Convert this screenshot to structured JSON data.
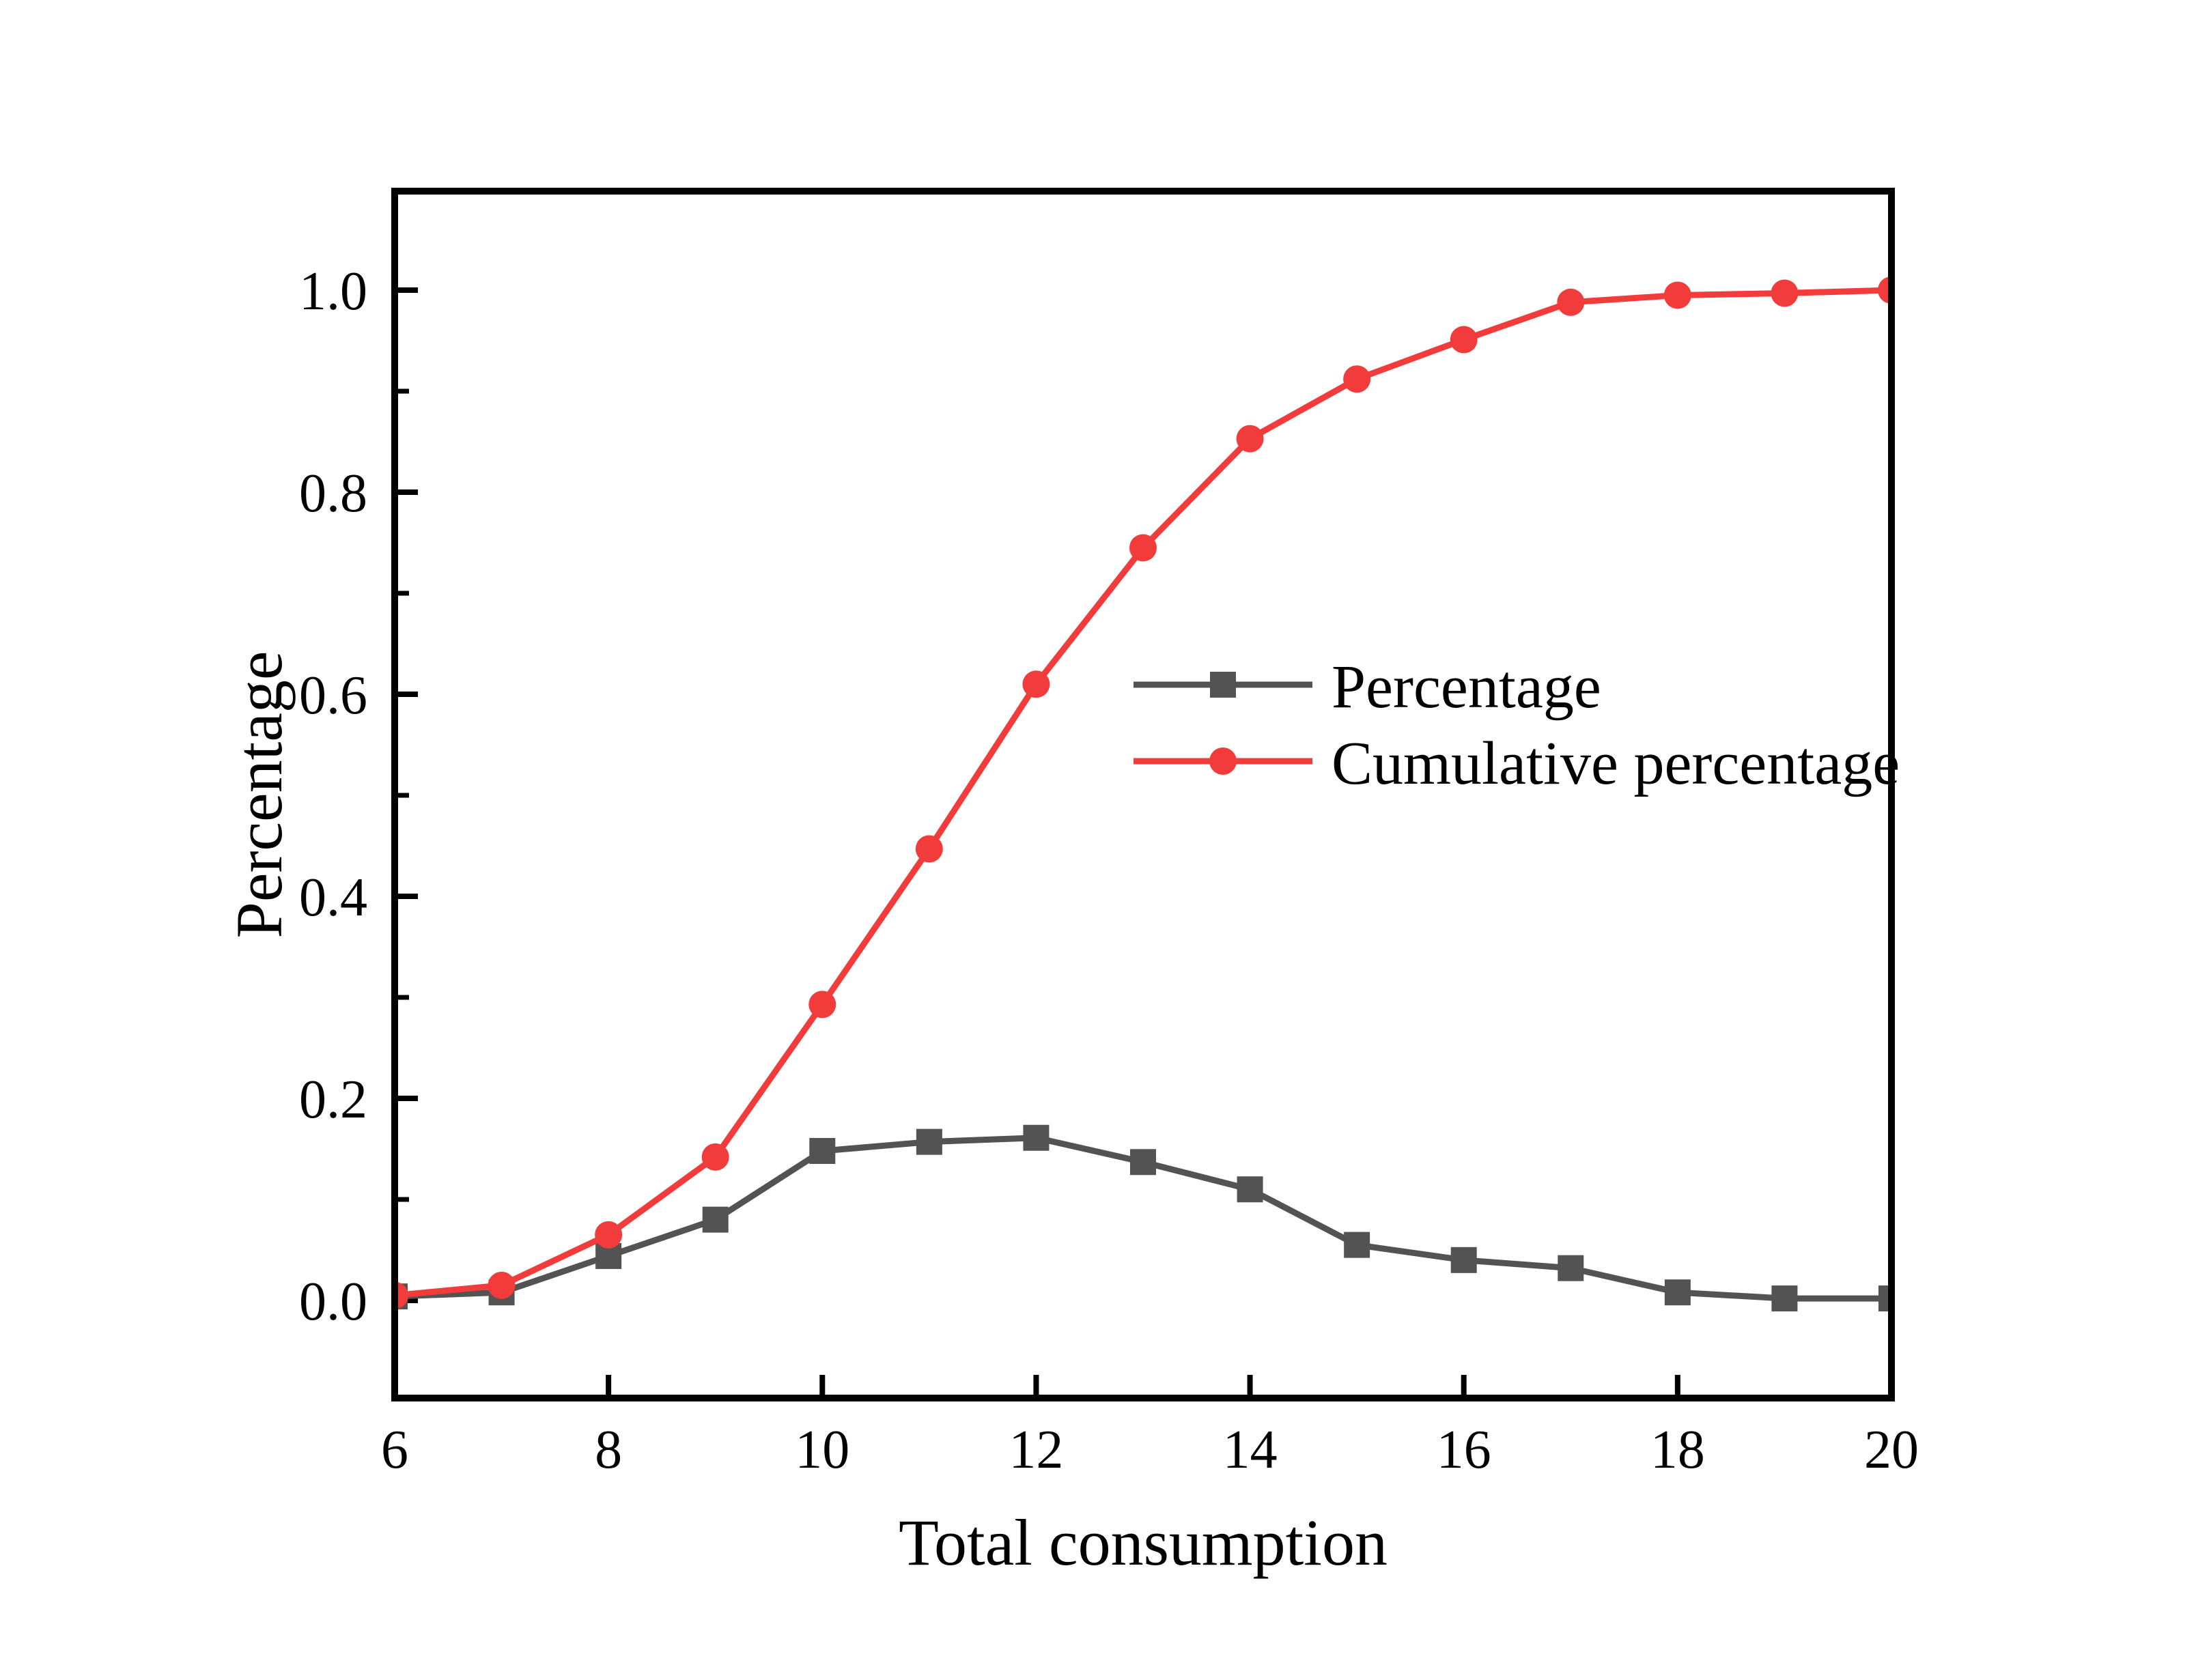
{
  "figure": {
    "background": "#ffffff",
    "axis_color": "#000000",
    "text_color": "#000000"
  },
  "chart_data": {
    "type": "line",
    "title": "",
    "xlabel": "Total consumption",
    "ylabel": "Percentage",
    "x": [
      6,
      7,
      8,
      9,
      10,
      11,
      12,
      13,
      14,
      15,
      16,
      17,
      18,
      19,
      20
    ],
    "series": [
      {
        "name": "Percentage",
        "color": "#535353",
        "marker": "square",
        "values": [
          0.004,
          0.008,
          0.044,
          0.08,
          0.148,
          0.157,
          0.161,
          0.137,
          0.11,
          0.055,
          0.04,
          0.032,
          0.008,
          0.002,
          0.002
        ]
      },
      {
        "name": "Cumulative percentage",
        "color": "#F23B3B",
        "marker": "circle",
        "values": [
          0.005,
          0.015,
          0.065,
          0.142,
          0.293,
          0.447,
          0.61,
          0.745,
          0.853,
          0.912,
          0.951,
          0.988,
          0.995,
          0.997,
          1.0
        ]
      }
    ],
    "xlim": [
      6,
      20
    ],
    "ylim": [
      -0.0966,
      1.098
    ],
    "x_tick_values": [
      8,
      10,
      12,
      14,
      16,
      18
    ],
    "x_label_values": [
      6,
      8,
      10,
      12,
      14,
      16,
      18,
      20
    ],
    "x_tick_labels": [
      "6",
      "8",
      "10",
      "12",
      "14",
      "16",
      "18",
      "20"
    ],
    "y_major_ticks": [
      0.0,
      0.2,
      0.4,
      0.6,
      0.8,
      1.0
    ],
    "y_tick_labels": [
      "0.0",
      "0.2",
      "0.4",
      "0.6",
      "0.8",
      "1.0"
    ],
    "y_minor_ticks": [
      0.1,
      0.3,
      0.5,
      0.7,
      0.9
    ],
    "grid": false,
    "legend_position": "center-right"
  }
}
